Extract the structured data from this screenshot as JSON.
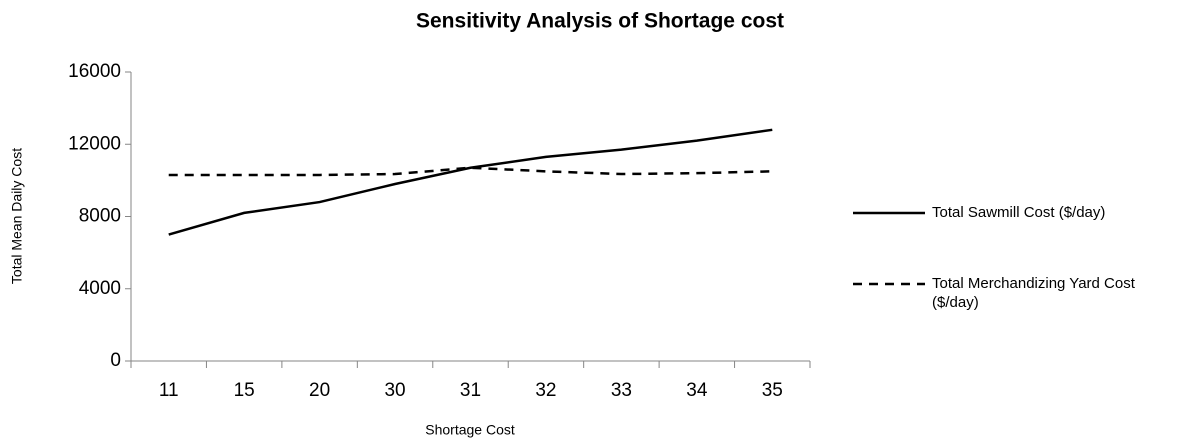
{
  "chart_data": {
    "type": "line",
    "title": "Sensitivity Analysis of Shortage cost",
    "x_label": "Shortage Cost",
    "y_label": "Total Mean Daily Cost",
    "categories": [
      "11",
      "15",
      "20",
      "30",
      "31",
      "32",
      "33",
      "34",
      "35"
    ],
    "series": [
      {
        "name": "Total Sawmill Cost ($/day)",
        "color": "#000000",
        "dash": "solid",
        "values": [
          7000,
          8200,
          8800,
          9800,
          10700,
          11300,
          11700,
          12200,
          12800
        ]
      },
      {
        "name": "Total Merchandizing Yard Cost ($/day)",
        "color": "#000000",
        "dash": "dashed",
        "values": [
          10300,
          10300,
          10300,
          10350,
          10700,
          10500,
          10350,
          10400,
          10500
        ]
      }
    ],
    "ylim": [
      0,
      16000
    ],
    "yticks": [
      0,
      4000,
      8000,
      12000,
      16000
    ],
    "grid": false,
    "legend": "right"
  }
}
